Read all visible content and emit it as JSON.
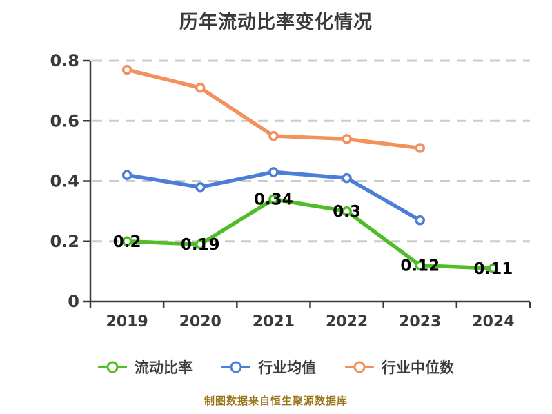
{
  "title": "历年流动比率变化情况",
  "chart_data": {
    "type": "line",
    "categories": [
      "2019",
      "2020",
      "2021",
      "2022",
      "2023",
      "2024"
    ],
    "ylim": [
      0,
      0.8
    ],
    "yticks": [
      0,
      0.2,
      0.4,
      0.6,
      0.8
    ],
    "ytick_labels": [
      "0",
      "0.2",
      "0.4",
      "0.6",
      "0.8"
    ],
    "grid": "horizontal-dashed",
    "legend_position": "bottom",
    "series": [
      {
        "name": "流动比率",
        "slug": "current-ratio",
        "color": "#50bd28",
        "values": [
          0.2,
          0.19,
          0.34,
          0.3,
          0.12,
          0.11
        ],
        "labels": [
          "0.2",
          "0.19",
          "0.34",
          "0.3",
          "0.12",
          "0.11"
        ],
        "show_labels": true
      },
      {
        "name": "行业均值",
        "slug": "industry-average",
        "color": "#4b7ed6",
        "values": [
          0.42,
          0.38,
          0.43,
          0.41,
          0.27,
          null
        ],
        "labels": [],
        "show_labels": false
      },
      {
        "name": "行业中位数",
        "slug": "industry-median",
        "color": "#f2915c",
        "values": [
          0.77,
          0.71,
          0.55,
          0.54,
          0.51,
          null
        ],
        "labels": [],
        "show_labels": false
      }
    ]
  },
  "footer": {
    "note": "制图数据来自恒生聚源数据库",
    "color": "#9a7519"
  },
  "colors": {
    "axis": "#3a3a3a",
    "grid": "#cccccc",
    "value_label": "#000000",
    "title": "#3a3a3a",
    "marker_fill": "#ffffff",
    "background": "#ffffff"
  }
}
